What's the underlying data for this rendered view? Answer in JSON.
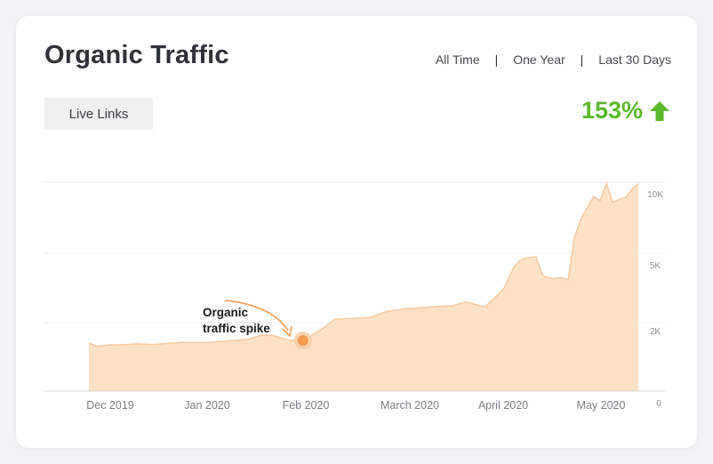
{
  "header": {
    "title": "Organic Traffic",
    "ranges": [
      "All Time",
      "One Year",
      "Last 30 Days"
    ]
  },
  "toolbar": {
    "live_links_label": "Live Links"
  },
  "growth": {
    "value": "153%",
    "direction": "up",
    "icon": "arrow-up-icon",
    "color": "#5ab92c"
  },
  "annotation": {
    "line1": "Organic",
    "line2": "traffic spike",
    "at_date": "2020-01-31"
  },
  "chart_data": {
    "type": "area",
    "title": "",
    "xlabel": "",
    "ylabel": "",
    "color": "#fde2c8",
    "line_color": "#f7c9a0",
    "marker_color": "#f59c53",
    "x_tick_labels": [
      "Dec 2019",
      "Jan 2020",
      "Feb 2020",
      "March 2020",
      "April 2020",
      "May 2020"
    ],
    "x_tick_dates": [
      "2019-12-01",
      "2020-01-01",
      "2020-02-01",
      "2020-03-01",
      "2020-04-01",
      "2020-05-01"
    ],
    "x_range": [
      "2019-11-25",
      "2020-05-15"
    ],
    "y_tick_labels": [
      "0",
      "2K",
      "5K",
      "10K"
    ],
    "y_tick_values": [
      0,
      2000,
      5000,
      10000
    ],
    "y_scale": "piecewise",
    "grid": true,
    "series": [
      {
        "x": [
          "2019-11-25",
          "2019-11-28",
          "2019-12-01",
          "2019-12-05",
          "2019-12-10",
          "2019-12-15",
          "2019-12-20",
          "2019-12-25",
          "2020-01-01",
          "2020-01-07",
          "2020-01-14",
          "2020-01-18",
          "2020-01-22",
          "2020-01-26",
          "2020-01-31",
          "2020-02-03",
          "2020-02-06",
          "2020-02-10",
          "2020-02-16",
          "2020-02-21",
          "2020-02-26",
          "2020-03-03",
          "2020-03-08",
          "2020-03-14",
          "2020-03-18",
          "2020-03-22",
          "2020-03-28",
          "2020-04-01",
          "2020-04-03",
          "2020-04-06",
          "2020-04-08",
          "2020-04-10",
          "2020-04-13",
          "2020-04-15",
          "2020-04-18",
          "2020-04-21",
          "2020-04-23",
          "2020-04-25",
          "2020-04-27",
          "2020-04-30",
          "2020-05-01",
          "2020-05-03",
          "2020-05-05",
          "2020-05-07",
          "2020-05-09",
          "2020-05-11",
          "2020-05-13",
          "2020-05-15"
        ],
        "y": [
          1400,
          1300,
          1350,
          1350,
          1380,
          1360,
          1400,
          1420,
          1420,
          1460,
          1520,
          1640,
          1620,
          1500,
          1450,
          1650,
          1820,
          2150,
          2180,
          2230,
          2480,
          2600,
          2650,
          2700,
          2740,
          2900,
          2680,
          3200,
          3500,
          4400,
          4700,
          4800,
          4850,
          4050,
          3900,
          3950,
          3850,
          6100,
          7400,
          8600,
          9000,
          8700,
          9900,
          8600,
          8800,
          8900,
          9500,
          9900
        ]
      }
    ]
  }
}
